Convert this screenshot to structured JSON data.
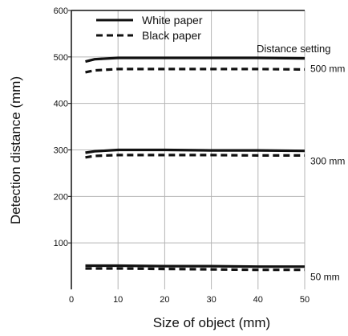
{
  "chart_data": {
    "type": "line",
    "title": "",
    "xlabel": "Size of object (mm)",
    "ylabel": "Detection distance  (mm)",
    "xlim": [
      0,
      50
    ],
    "ylim": [
      0,
      600
    ],
    "x_ticks": [
      0,
      10,
      20,
      30,
      40,
      50
    ],
    "y_ticks": [
      100,
      200,
      300,
      400,
      500,
      600
    ],
    "grid": true,
    "legend": {
      "placement": "top-left",
      "entries": [
        {
          "label": "White paper",
          "style": "solid"
        },
        {
          "label": "Black paper",
          "style": "dashed"
        }
      ]
    },
    "annotation_heading": "Distance setting",
    "groups": [
      {
        "setting_label": "500 mm",
        "series": [
          {
            "legend": "White paper",
            "style": "solid",
            "x": [
              3,
              5,
              10,
              20,
              30,
              40,
              50
            ],
            "y": [
              490,
              495,
              498,
              498,
              498,
              498,
              497
            ]
          },
          {
            "legend": "Black paper",
            "style": "dashed",
            "x": [
              3,
              5,
              10,
              20,
              30,
              40,
              50
            ],
            "y": [
              467,
              471,
              474,
              474,
              474,
              474,
              473
            ]
          }
        ]
      },
      {
        "setting_label": "300 mm",
        "series": [
          {
            "legend": "White paper",
            "style": "solid",
            "x": [
              3,
              5,
              10,
              20,
              30,
              40,
              50
            ],
            "y": [
              294,
              297,
              300,
              300,
              299,
              299,
              298
            ]
          },
          {
            "legend": "Black paper",
            "style": "dashed",
            "x": [
              3,
              5,
              10,
              20,
              30,
              40,
              50
            ],
            "y": [
              284,
              287,
              289,
              289,
              289,
              288,
              288
            ]
          }
        ]
      },
      {
        "setting_label": "50 mm",
        "series": [
          {
            "legend": "White paper",
            "style": "solid",
            "x": [
              3,
              10,
              20,
              30,
              40,
              50
            ],
            "y": [
              51,
              51,
              50,
              50,
              49,
              49
            ]
          },
          {
            "legend": "Black paper",
            "style": "dashed",
            "x": [
              3,
              10,
              20,
              30,
              40,
              50
            ],
            "y": [
              45,
              45,
              44,
              43,
              42,
              42
            ]
          }
        ]
      }
    ],
    "colors": {
      "line": "#111111",
      "grid": "#b5b5b5",
      "axis": "#111111"
    }
  }
}
